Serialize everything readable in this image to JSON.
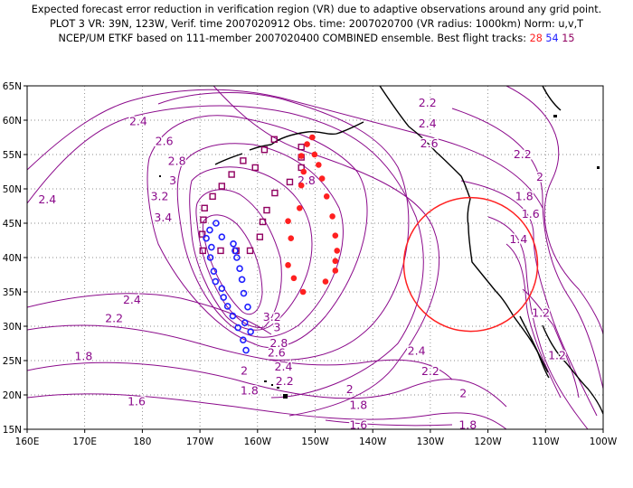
{
  "header": {
    "line1": "Expected forecast error reduction in verification region (VR) due to adaptive observations around any grid point.",
    "line2": "PLOT 3 VR: 39N, 123W, Verif. time 2007020912 Obs. time: 2007020700 (VR radius: 1000km) Norm: u,v,T",
    "line3_prefix": "NCEP/UM ETKF based on 111-member 2007020400 COMBINED ensemble.  Best flight tracks:",
    "track_red": "28",
    "track_blue": "54",
    "track_purple": "15"
  },
  "colors": {
    "contour": "#8b0a8b",
    "track_red": "#ff2020",
    "track_blue": "#2020ff",
    "track_purple": "#900060",
    "verification_circle": "#ff2020",
    "coastline": "#000000"
  },
  "map": {
    "lon_min": 160,
    "lon_max": 260,
    "lat_min": 15,
    "lat_max": 65,
    "lat_ticks": [
      "15N",
      "20N",
      "25N",
      "30N",
      "35N",
      "40N",
      "45N",
      "50N",
      "55N",
      "60N",
      "65N"
    ],
    "lon_ticks": [
      "160E",
      "170E",
      "180",
      "170W",
      "160W",
      "150W",
      "140W",
      "130W",
      "120W",
      "110W",
      "100W"
    ],
    "contour_labels": [
      {
        "text": "2.2",
        "lon": 229.5,
        "lat": 62.5
      },
      {
        "text": "2.4",
        "lon": 179.3,
        "lat": 59.8
      },
      {
        "text": "2.4",
        "lon": 229.5,
        "lat": 59.5
      },
      {
        "text": "2.6",
        "lon": 183.8,
        "lat": 56.9
      },
      {
        "text": "2.6",
        "lon": 229.8,
        "lat": 56.6
      },
      {
        "text": "2.2",
        "lon": 246.0,
        "lat": 55.0
      },
      {
        "text": "2.8",
        "lon": 186.0,
        "lat": 54.0
      },
      {
        "text": "2.8",
        "lon": 208.5,
        "lat": 51.2
      },
      {
        "text": "2",
        "lon": 249.0,
        "lat": 51.7
      },
      {
        "text": "3",
        "lon": 185.3,
        "lat": 51.2
      },
      {
        "text": "2.4",
        "lon": 163.5,
        "lat": 48.4
      },
      {
        "text": "3.2",
        "lon": 183.0,
        "lat": 48.9
      },
      {
        "text": "1.8",
        "lon": 246.3,
        "lat": 48.9
      },
      {
        "text": "1.6",
        "lon": 247.4,
        "lat": 46.3
      },
      {
        "text": "3.4",
        "lon": 183.6,
        "lat": 45.8
      },
      {
        "text": "1.4",
        "lon": 245.3,
        "lat": 42.6
      },
      {
        "text": "2.4",
        "lon": 178.2,
        "lat": 33.8
      },
      {
        "text": "2.2",
        "lon": 175.1,
        "lat": 31.1
      },
      {
        "text": "3.2",
        "lon": 202.5,
        "lat": 31.3
      },
      {
        "text": "1.2",
        "lon": 249.2,
        "lat": 31.9
      },
      {
        "text": "3",
        "lon": 203.4,
        "lat": 29.8
      },
      {
        "text": "2.8",
        "lon": 203.7,
        "lat": 27.5
      },
      {
        "text": "2.6",
        "lon": 203.3,
        "lat": 26.1
      },
      {
        "text": "2.4",
        "lon": 227.6,
        "lat": 26.4
      },
      {
        "text": "1.8",
        "lon": 169.8,
        "lat": 25.6
      },
      {
        "text": "1.2",
        "lon": 252.0,
        "lat": 25.7
      },
      {
        "text": "2.4",
        "lon": 204.5,
        "lat": 24.1
      },
      {
        "text": "2.2",
        "lon": 230.0,
        "lat": 23.4
      },
      {
        "text": "2",
        "lon": 197.7,
        "lat": 23.5
      },
      {
        "text": "2.2",
        "lon": 204.7,
        "lat": 22.0
      },
      {
        "text": "2",
        "lon": 216.0,
        "lat": 20.8
      },
      {
        "text": "2",
        "lon": 235.7,
        "lat": 20.2
      },
      {
        "text": "1.8",
        "lon": 198.6,
        "lat": 20.6
      },
      {
        "text": "1.8",
        "lon": 217.5,
        "lat": 18.5
      },
      {
        "text": "1.6",
        "lon": 179.0,
        "lat": 19.0
      },
      {
        "text": "1.6",
        "lon": 217.5,
        "lat": 15.6
      },
      {
        "text": "1.8",
        "lon": 236.5,
        "lat": 15.6
      }
    ],
    "verification_region": {
      "lon": 237,
      "lat": 39,
      "radius_km": 1000
    },
    "red_track": [
      {
        "lon": 209.5,
        "lat": 57.5
      },
      {
        "lon": 208.6,
        "lat": 56.5
      },
      {
        "lon": 209.9,
        "lat": 55.0
      },
      {
        "lon": 207.6,
        "lat": 54.8
      },
      {
        "lon": 210.6,
        "lat": 53.5
      },
      {
        "lon": 208.0,
        "lat": 52.5
      },
      {
        "lon": 211.2,
        "lat": 51.5
      },
      {
        "lon": 207.6,
        "lat": 50.5
      },
      {
        "lon": 212.0,
        "lat": 48.9
      },
      {
        "lon": 207.3,
        "lat": 47.2
      },
      {
        "lon": 213.0,
        "lat": 46.0
      },
      {
        "lon": 205.3,
        "lat": 45.3
      },
      {
        "lon": 213.5,
        "lat": 43.2
      },
      {
        "lon": 205.8,
        "lat": 42.8
      },
      {
        "lon": 213.8,
        "lat": 41.0
      },
      {
        "lon": 213.5,
        "lat": 39.5
      },
      {
        "lon": 205.3,
        "lat": 38.9
      },
      {
        "lon": 213.5,
        "lat": 38.1
      },
      {
        "lon": 206.3,
        "lat": 37.0
      },
      {
        "lon": 211.8,
        "lat": 36.5
      },
      {
        "lon": 207.9,
        "lat": 35.0
      }
    ],
    "blue_track": [
      {
        "lon": 192.8,
        "lat": 45.0
      },
      {
        "lon": 191.7,
        "lat": 44.0
      },
      {
        "lon": 193.8,
        "lat": 43.0
      },
      {
        "lon": 191.1,
        "lat": 42.8
      },
      {
        "lon": 195.8,
        "lat": 42.0
      },
      {
        "lon": 192.0,
        "lat": 41.5
      },
      {
        "lon": 196.1,
        "lat": 41.0
      },
      {
        "lon": 191.8,
        "lat": 40.0
      },
      {
        "lon": 196.4,
        "lat": 40.0
      },
      {
        "lon": 196.9,
        "lat": 38.4
      },
      {
        "lon": 192.4,
        "lat": 38.0
      },
      {
        "lon": 197.3,
        "lat": 36.8
      },
      {
        "lon": 192.7,
        "lat": 36.5
      },
      {
        "lon": 193.8,
        "lat": 35.5
      },
      {
        "lon": 197.6,
        "lat": 34.8
      },
      {
        "lon": 194.1,
        "lat": 34.2
      },
      {
        "lon": 194.8,
        "lat": 32.9
      },
      {
        "lon": 198.3,
        "lat": 32.8
      },
      {
        "lon": 195.7,
        "lat": 31.5
      },
      {
        "lon": 197.8,
        "lat": 30.5
      },
      {
        "lon": 196.6,
        "lat": 29.8
      },
      {
        "lon": 198.8,
        "lat": 29.2
      },
      {
        "lon": 197.5,
        "lat": 28.0
      },
      {
        "lon": 198.0,
        "lat": 26.5
      }
    ],
    "purple_track": [
      {
        "lon": 207.6,
        "lat": 56.1
      },
      {
        "lon": 202.9,
        "lat": 57.2
      },
      {
        "lon": 207.6,
        "lat": 54.6
      },
      {
        "lon": 201.2,
        "lat": 55.7
      },
      {
        "lon": 197.5,
        "lat": 54.1
      },
      {
        "lon": 207.6,
        "lat": 53.1
      },
      {
        "lon": 199.6,
        "lat": 53.1
      },
      {
        "lon": 195.5,
        "lat": 52.1
      },
      {
        "lon": 205.6,
        "lat": 51.0
      },
      {
        "lon": 193.8,
        "lat": 50.4
      },
      {
        "lon": 203.0,
        "lat": 49.4
      },
      {
        "lon": 192.2,
        "lat": 48.9
      },
      {
        "lon": 190.8,
        "lat": 47.2
      },
      {
        "lon": 201.6,
        "lat": 46.9
      },
      {
        "lon": 190.6,
        "lat": 45.5
      },
      {
        "lon": 200.9,
        "lat": 45.2
      },
      {
        "lon": 190.4,
        "lat": 43.4
      },
      {
        "lon": 200.4,
        "lat": 43.0
      },
      {
        "lon": 190.5,
        "lat": 41.0
      },
      {
        "lon": 193.6,
        "lat": 41.0
      },
      {
        "lon": 196.3,
        "lat": 41.0
      },
      {
        "lon": 198.7,
        "lat": 41.0
      }
    ]
  }
}
